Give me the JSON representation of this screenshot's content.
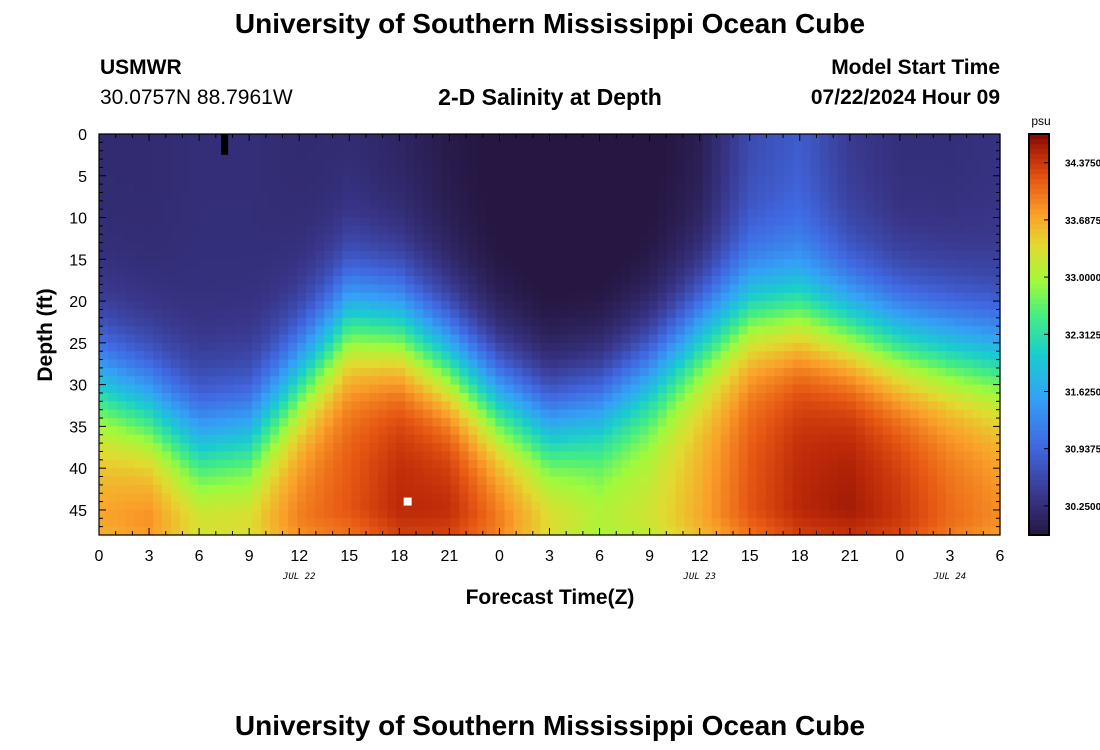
{
  "header": {
    "title": "University of Southern Mississippi Ocean Cube",
    "station": "USMWR",
    "coords": "30.0757N  88.7961W",
    "subtitle": "2-D Salinity at Depth",
    "start_label": "Model Start Time",
    "start_value": "07/22/2024 Hour 09"
  },
  "footer": {
    "title": "University of Southern Mississippi Ocean Cube"
  },
  "chart_data": {
    "type": "heatmap",
    "title": "2-D Salinity at Depth",
    "xlabel": "Forecast Time(Z)",
    "ylabel": "Depth (ft)",
    "x_tick_labels": [
      "0",
      "3",
      "6",
      "9",
      "12",
      "15",
      "18",
      "21",
      "0",
      "3",
      "6",
      "9",
      "12",
      "15",
      "18",
      "21",
      "0",
      "3",
      "6"
    ],
    "x_range_hours": [
      0,
      54
    ],
    "date_labels": [
      {
        "text": "JUL 22",
        "hour": 12
      },
      {
        "text": "JUL 23",
        "hour": 36
      },
      {
        "text": "JUL 24",
        "hour": 51
      }
    ],
    "y_tick_labels": [
      "0",
      "5",
      "10",
      "15",
      "20",
      "25",
      "30",
      "35",
      "40",
      "45"
    ],
    "ylim": [
      0,
      48
    ],
    "y_inverted": true,
    "colorbar": {
      "unit": "psu",
      "labels": [
        "34.3750",
        "33.6875",
        "33.0000",
        "32.3125",
        "31.6250",
        "30.9375",
        "30.2500"
      ],
      "range": [
        29.9,
        34.72
      ]
    },
    "markers": [
      {
        "type": "square",
        "color": "#ffffff",
        "hour": 18.5,
        "depth": 44
      },
      {
        "type": "bar",
        "color": "#000000",
        "hour": 7.5,
        "depth_from": 0,
        "depth_to": 2.5
      }
    ],
    "surface": {
      "description_values": "upper salinity by hour",
      "hours": [
        0,
        3,
        6,
        9,
        12,
        15,
        18,
        21,
        24,
        27,
        30,
        33,
        36,
        39,
        42,
        45,
        48,
        51,
        54
      ],
      "upper": [
        30.2,
        30.2,
        30.25,
        30.25,
        30.2,
        30.2,
        30.1,
        29.95,
        29.85,
        29.8,
        29.8,
        29.85,
        30.0,
        30.6,
        30.8,
        30.4,
        30.25,
        30.25,
        30.3
      ],
      "halocline_depth_ft": [
        30,
        33,
        37,
        36,
        29,
        22,
        23,
        27,
        32,
        35,
        33,
        29,
        24,
        21,
        21,
        23,
        25,
        26,
        27
      ],
      "bottom": [
        33.8,
        34.0,
        33.6,
        33.6,
        34.0,
        34.2,
        34.5,
        34.5,
        34.1,
        33.6,
        33.2,
        33.3,
        33.7,
        34.2,
        34.5,
        34.6,
        34.4,
        34.1,
        33.9
      ],
      "bottom_core_depth_ft": [
        46,
        46,
        46,
        46,
        46,
        45,
        45,
        45,
        46,
        46,
        46,
        46,
        46,
        45,
        45,
        45,
        46,
        46,
        46
      ]
    }
  }
}
